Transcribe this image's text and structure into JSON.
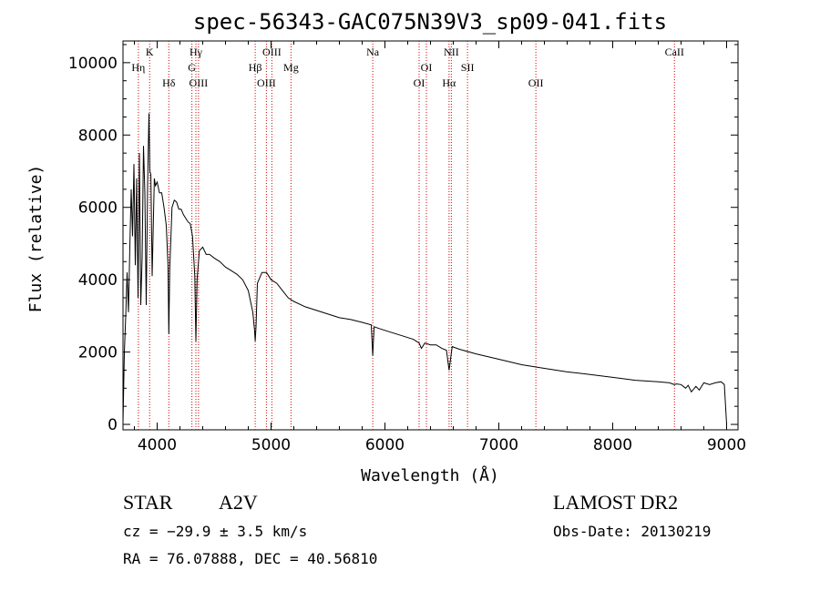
{
  "chart_data": {
    "type": "line",
    "title": "spec-56343-GAC075N39V3_sp09-041.fits",
    "xlabel": "Wavelength (Å)",
    "ylabel": "Flux (relative)",
    "xlim": [
      3700,
      9100
    ],
    "ylim": [
      -150,
      10600
    ],
    "x_ticks": [
      4000,
      5000,
      6000,
      7000,
      8000,
      9000
    ],
    "y_ticks": [
      0,
      2000,
      4000,
      6000,
      8000,
      10000
    ],
    "grid": false,
    "line_markers": [
      {
        "label": "Hη",
        "x": 3835,
        "row": 2
      },
      {
        "label": "K",
        "x": 3934,
        "row": 1
      },
      {
        "label": "Hδ",
        "x": 4102,
        "row": 3
      },
      {
        "label": "Hγ",
        "x": 4340,
        "row": 1
      },
      {
        "label": "G",
        "x": 4305,
        "row": 2
      },
      {
        "label": "OIII",
        "x": 4363,
        "row": 3
      },
      {
        "label": "Hβ",
        "x": 4861,
        "row": 2
      },
      {
        "label": "OIII",
        "x": 5007,
        "row": 1
      },
      {
        "label": "OIII",
        "x": 4959,
        "row": 3
      },
      {
        "label": "Mg",
        "x": 5175,
        "row": 2
      },
      {
        "label": "Na",
        "x": 5893,
        "row": 1
      },
      {
        "label": "OI",
        "x": 6364,
        "row": 2
      },
      {
        "label": "OI",
        "x": 6300,
        "row": 3
      },
      {
        "label": "NII",
        "x": 6583,
        "row": 1
      },
      {
        "label": "SII",
        "x": 6725,
        "row": 2
      },
      {
        "label": "Hα",
        "x": 6563,
        "row": 3
      },
      {
        "label": "OII",
        "x": 7325,
        "row": 3
      },
      {
        "label": "CaII",
        "x": 8542,
        "row": 1
      }
    ],
    "series": [
      {
        "x": [
          3700,
          3712,
          3724,
          3736,
          3748,
          3760,
          3772,
          3784,
          3796,
          3808,
          3820,
          3832,
          3844,
          3856,
          3868,
          3880,
          3892,
          3904,
          3916,
          3928,
          3936,
          3945,
          3956,
          3968,
          3975,
          3985,
          4000,
          4020,
          4040,
          4060,
          4080,
          4095,
          4102,
          4110,
          4130,
          4150,
          4170,
          4190,
          4210,
          4230,
          4250,
          4270,
          4290,
          4310,
          4330,
          4340,
          4350,
          4370,
          4400,
          4430,
          4460,
          4500,
          4550,
          4600,
          4650,
          4700,
          4750,
          4800,
          4840,
          4855,
          4861,
          4868,
          4880,
          4920,
          4960,
          5000,
          5050,
          5100,
          5150,
          5200,
          5300,
          5400,
          5500,
          5600,
          5700,
          5800,
          5880,
          5893,
          5905,
          5950,
          6050,
          6150,
          6250,
          6300,
          6320,
          6350,
          6400,
          6450,
          6500,
          6540,
          6563,
          6590,
          6650,
          6800,
          7000,
          7200,
          7400,
          7600,
          7800,
          8000,
          8200,
          8400,
          8500,
          8540,
          8560,
          8600,
          8640,
          8662,
          8690,
          8730,
          8760,
          8800,
          8850,
          8900,
          8950,
          8980,
          9000
        ],
        "y": [
          50,
          2000,
          3000,
          4200,
          3100,
          4900,
          6500,
          5200,
          7200,
          4400,
          6800,
          3500,
          7500,
          3300,
          4600,
          7700,
          6400,
          3300,
          6600,
          8600,
          7000,
          6900,
          4100,
          5800,
          6800,
          6600,
          6700,
          6400,
          6400,
          6000,
          5500,
          4400,
          2500,
          4300,
          6000,
          6200,
          6150,
          5950,
          5950,
          5800,
          5700,
          5600,
          5550,
          5200,
          4100,
          2300,
          4000,
          4800,
          4900,
          4700,
          4700,
          4600,
          4500,
          4350,
          4250,
          4150,
          4000,
          3700,
          3100,
          2600,
          2300,
          2700,
          3900,
          4200,
          4200,
          4000,
          3900,
          3700,
          3500,
          3400,
          3250,
          3150,
          3050,
          2950,
          2900,
          2820,
          2750,
          1900,
          2700,
          2650,
          2550,
          2450,
          2350,
          2250,
          2100,
          2250,
          2200,
          2200,
          2100,
          2050,
          1500,
          2150,
          2080,
          1950,
          1800,
          1650,
          1550,
          1450,
          1380,
          1300,
          1220,
          1180,
          1150,
          1100,
          1120,
          1100,
          1000,
          1080,
          900,
          1050,
          950,
          1150,
          1100,
          1150,
          1180,
          1100,
          0
        ]
      }
    ]
  },
  "info": {
    "class_label": "STAR",
    "subclass": "A2V",
    "cz": "cz = −29.9 ± 3.5 km/s",
    "coords": "RA =  76.07888, DEC =  40.56810",
    "survey": "LAMOST DR2",
    "obs_date": "Obs-Date: 20130219"
  },
  "colors": {
    "axis": "#000000",
    "spectrum": "#000000",
    "marker_line": "#d00000"
  }
}
